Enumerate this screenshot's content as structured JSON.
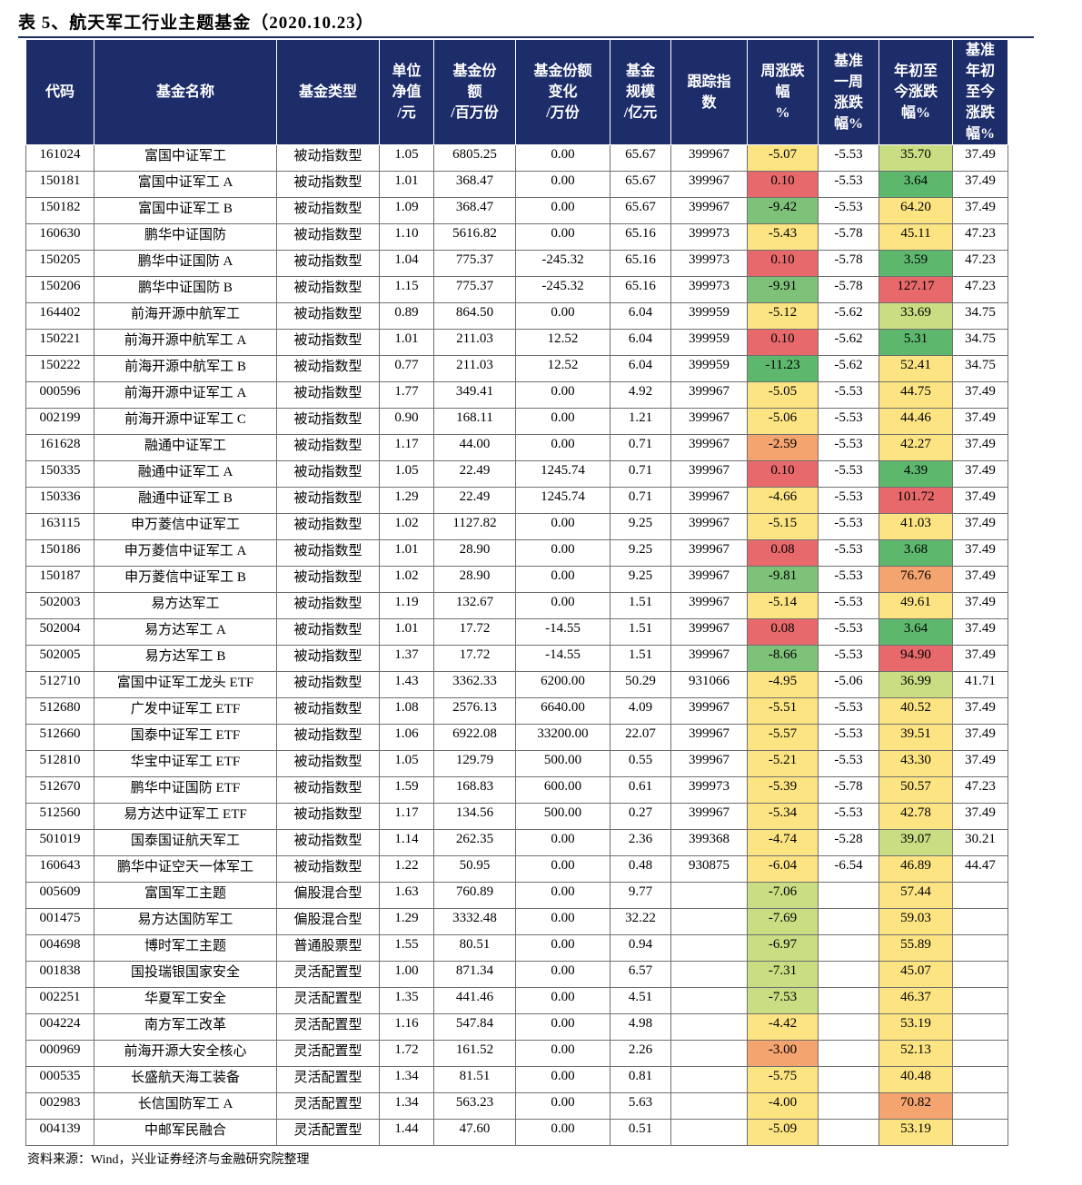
{
  "title": "表 5、航天军工行业主题基金（2020.10.23）",
  "source": "资料来源：Wind，兴业证券经济与金融研究院整理",
  "colors": {
    "header_bg": "#1d2d6a",
    "red": "#e8696b",
    "orange": "#f4a46e",
    "yellow": "#fde483",
    "lime": "#c9dd82",
    "green": "#7ec27a",
    "deep_green": "#5db86e"
  },
  "headers": [
    [
      "代码"
    ],
    [
      "基金名称"
    ],
    [
      "基金类型"
    ],
    [
      "单位",
      "净值",
      "/元"
    ],
    [
      "基金份",
      "额",
      "/百万份"
    ],
    [
      "基金份额",
      "变化",
      "/万份"
    ],
    [
      "基金",
      "规模",
      "/亿元"
    ],
    [
      "跟踪指",
      "数"
    ],
    [
      "周涨跌",
      "幅",
      "%"
    ],
    [
      "基准",
      "一周",
      "涨跌",
      "幅%"
    ],
    [
      "年初至",
      "今涨跌",
      "幅%"
    ],
    [
      "基准",
      "年初",
      "至今",
      "涨跌",
      "幅%"
    ]
  ],
  "rows": [
    [
      "161024",
      "富国中证军工",
      "被动指数型",
      "1.05",
      "6805.25",
      "0.00",
      "65.67",
      "399967",
      "-5.07",
      "-5.53",
      "35.70",
      "37.49"
    ],
    [
      "150181",
      "富国中证军工 A",
      "被动指数型",
      "1.01",
      "368.47",
      "0.00",
      "65.67",
      "399967",
      "0.10",
      "-5.53",
      "3.64",
      "37.49"
    ],
    [
      "150182",
      "富国中证军工 B",
      "被动指数型",
      "1.09",
      "368.47",
      "0.00",
      "65.67",
      "399967",
      "-9.42",
      "-5.53",
      "64.20",
      "37.49"
    ],
    [
      "160630",
      "鹏华中证国防",
      "被动指数型",
      "1.10",
      "5616.82",
      "0.00",
      "65.16",
      "399973",
      "-5.43",
      "-5.78",
      "45.11",
      "47.23"
    ],
    [
      "150205",
      "鹏华中证国防 A",
      "被动指数型",
      "1.04",
      "775.37",
      "-245.32",
      "65.16",
      "399973",
      "0.10",
      "-5.78",
      "3.59",
      "47.23"
    ],
    [
      "150206",
      "鹏华中证国防 B",
      "被动指数型",
      "1.15",
      "775.37",
      "-245.32",
      "65.16",
      "399973",
      "-9.91",
      "-5.78",
      "127.17",
      "47.23"
    ],
    [
      "164402",
      "前海开源中航军工",
      "被动指数型",
      "0.89",
      "864.50",
      "0.00",
      "6.04",
      "399959",
      "-5.12",
      "-5.62",
      "33.69",
      "34.75"
    ],
    [
      "150221",
      "前海开源中航军工 A",
      "被动指数型",
      "1.01",
      "211.03",
      "12.52",
      "6.04",
      "399959",
      "0.10",
      "-5.62",
      "5.31",
      "34.75"
    ],
    [
      "150222",
      "前海开源中航军工 B",
      "被动指数型",
      "0.77",
      "211.03",
      "12.52",
      "6.04",
      "399959",
      "-11.23",
      "-5.62",
      "52.41",
      "34.75"
    ],
    [
      "000596",
      "前海开源中证军工 A",
      "被动指数型",
      "1.77",
      "349.41",
      "0.00",
      "4.92",
      "399967",
      "-5.05",
      "-5.53",
      "44.75",
      "37.49"
    ],
    [
      "002199",
      "前海开源中证军工 C",
      "被动指数型",
      "0.90",
      "168.11",
      "0.00",
      "1.21",
      "399967",
      "-5.06",
      "-5.53",
      "44.46",
      "37.49"
    ],
    [
      "161628",
      "融通中证军工",
      "被动指数型",
      "1.17",
      "44.00",
      "0.00",
      "0.71",
      "399967",
      "-2.59",
      "-5.53",
      "42.27",
      "37.49"
    ],
    [
      "150335",
      "融通中证军工 A",
      "被动指数型",
      "1.05",
      "22.49",
      "1245.74",
      "0.71",
      "399967",
      "0.10",
      "-5.53",
      "4.39",
      "37.49"
    ],
    [
      "150336",
      "融通中证军工 B",
      "被动指数型",
      "1.29",
      "22.49",
      "1245.74",
      "0.71",
      "399967",
      "-4.66",
      "-5.53",
      "101.72",
      "37.49"
    ],
    [
      "163115",
      "申万菱信中证军工",
      "被动指数型",
      "1.02",
      "1127.82",
      "0.00",
      "9.25",
      "399967",
      "-5.15",
      "-5.53",
      "41.03",
      "37.49"
    ],
    [
      "150186",
      "申万菱信中证军工 A",
      "被动指数型",
      "1.01",
      "28.90",
      "0.00",
      "9.25",
      "399967",
      "0.08",
      "-5.53",
      "3.68",
      "37.49"
    ],
    [
      "150187",
      "申万菱信中证军工 B",
      "被动指数型",
      "1.02",
      "28.90",
      "0.00",
      "9.25",
      "399967",
      "-9.81",
      "-5.53",
      "76.76",
      "37.49"
    ],
    [
      "502003",
      "易方达军工",
      "被动指数型",
      "1.19",
      "132.67",
      "0.00",
      "1.51",
      "399967",
      "-5.14",
      "-5.53",
      "49.61",
      "37.49"
    ],
    [
      "502004",
      "易方达军工 A",
      "被动指数型",
      "1.01",
      "17.72",
      "-14.55",
      "1.51",
      "399967",
      "0.08",
      "-5.53",
      "3.64",
      "37.49"
    ],
    [
      "502005",
      "易方达军工 B",
      "被动指数型",
      "1.37",
      "17.72",
      "-14.55",
      "1.51",
      "399967",
      "-8.66",
      "-5.53",
      "94.90",
      "37.49"
    ],
    [
      "512710",
      "富国中证军工龙头 ETF",
      "被动指数型",
      "1.43",
      "3362.33",
      "6200.00",
      "50.29",
      "931066",
      "-4.95",
      "-5.06",
      "36.99",
      "41.71"
    ],
    [
      "512680",
      "广发中证军工 ETF",
      "被动指数型",
      "1.08",
      "2576.13",
      "6640.00",
      "4.09",
      "399967",
      "-5.51",
      "-5.53",
      "40.52",
      "37.49"
    ],
    [
      "512660",
      "国泰中证军工 ETF",
      "被动指数型",
      "1.06",
      "6922.08",
      "33200.00",
      "22.07",
      "399967",
      "-5.57",
      "-5.53",
      "39.51",
      "37.49"
    ],
    [
      "512810",
      "华宝中证军工 ETF",
      "被动指数型",
      "1.05",
      "129.79",
      "500.00",
      "0.55",
      "399967",
      "-5.21",
      "-5.53",
      "43.30",
      "37.49"
    ],
    [
      "512670",
      "鹏华中证国防 ETF",
      "被动指数型",
      "1.59",
      "168.83",
      "600.00",
      "0.61",
      "399973",
      "-5.39",
      "-5.78",
      "50.57",
      "47.23"
    ],
    [
      "512560",
      "易方达中证军工 ETF",
      "被动指数型",
      "1.17",
      "134.56",
      "500.00",
      "0.27",
      "399967",
      "-5.34",
      "-5.53",
      "42.78",
      "37.49"
    ],
    [
      "501019",
      "国泰国证航天军工",
      "被动指数型",
      "1.14",
      "262.35",
      "0.00",
      "2.36",
      "399368",
      "-4.74",
      "-5.28",
      "39.07",
      "30.21"
    ],
    [
      "160643",
      "鹏华中证空天一体军工",
      "被动指数型",
      "1.22",
      "50.95",
      "0.00",
      "0.48",
      "930875",
      "-6.04",
      "-6.54",
      "46.89",
      "44.47"
    ],
    [
      "005609",
      "富国军工主题",
      "偏股混合型",
      "1.63",
      "760.89",
      "0.00",
      "9.77",
      "",
      "-7.06",
      "",
      "57.44",
      ""
    ],
    [
      "001475",
      "易方达国防军工",
      "偏股混合型",
      "1.29",
      "3332.48",
      "0.00",
      "32.22",
      "",
      "-7.69",
      "",
      "59.03",
      ""
    ],
    [
      "004698",
      "博时军工主题",
      "普通股票型",
      "1.55",
      "80.51",
      "0.00",
      "0.94",
      "",
      "-6.97",
      "",
      "55.89",
      ""
    ],
    [
      "001838",
      "国投瑞银国家安全",
      "灵活配置型",
      "1.00",
      "871.34",
      "0.00",
      "6.57",
      "",
      "-7.31",
      "",
      "45.07",
      ""
    ],
    [
      "002251",
      "华夏军工安全",
      "灵活配置型",
      "1.35",
      "441.46",
      "0.00",
      "4.51",
      "",
      "-7.53",
      "",
      "46.37",
      ""
    ],
    [
      "004224",
      "南方军工改革",
      "灵活配置型",
      "1.16",
      "547.84",
      "0.00",
      "4.98",
      "",
      "-4.42",
      "",
      "53.19",
      ""
    ],
    [
      "000969",
      "前海开源大安全核心",
      "灵活配置型",
      "1.72",
      "161.52",
      "0.00",
      "2.26",
      "",
      "-3.00",
      "",
      "52.13",
      ""
    ],
    [
      "000535",
      "长盛航天海工装备",
      "灵活配置型",
      "1.34",
      "81.51",
      "0.00",
      "0.81",
      "",
      "-5.75",
      "",
      "40.48",
      ""
    ],
    [
      "002983",
      "长信国防军工 A",
      "灵活配置型",
      "1.34",
      "563.23",
      "0.00",
      "5.63",
      "",
      "-4.00",
      "",
      "70.82",
      ""
    ],
    [
      "004139",
      "中邮军民融合",
      "灵活配置型",
      "1.44",
      "47.60",
      "0.00",
      "0.51",
      "",
      "-5.09",
      "",
      "53.19",
      ""
    ]
  ],
  "weekly_colors": [
    "yellow",
    "red",
    "green",
    "yellow",
    "red",
    "green",
    "yellow",
    "red",
    "deep_green",
    "yellow",
    "yellow",
    "orange",
    "red",
    "yellow",
    "yellow",
    "red",
    "green",
    "yellow",
    "red",
    "green",
    "yellow",
    "yellow",
    "yellow",
    "yellow",
    "yellow",
    "yellow",
    "yellow",
    "yellow",
    "lime",
    "lime",
    "lime",
    "lime",
    "lime",
    "yellow",
    "orange",
    "yellow",
    "yellow",
    "yellow"
  ],
  "ytd_colors": [
    "lime",
    "deep_green",
    "yellow",
    "yellow",
    "deep_green",
    "red",
    "lime",
    "deep_green",
    "yellow",
    "yellow",
    "yellow",
    "yellow",
    "deep_green",
    "red",
    "yellow",
    "deep_green",
    "orange",
    "yellow",
    "deep_green",
    "red",
    "lime",
    "yellow",
    "yellow",
    "yellow",
    "yellow",
    "yellow",
    "lime",
    "yellow",
    "yellow",
    "yellow",
    "yellow",
    "yellow",
    "yellow",
    "yellow",
    "yellow",
    "yellow",
    "orange",
    "yellow"
  ]
}
